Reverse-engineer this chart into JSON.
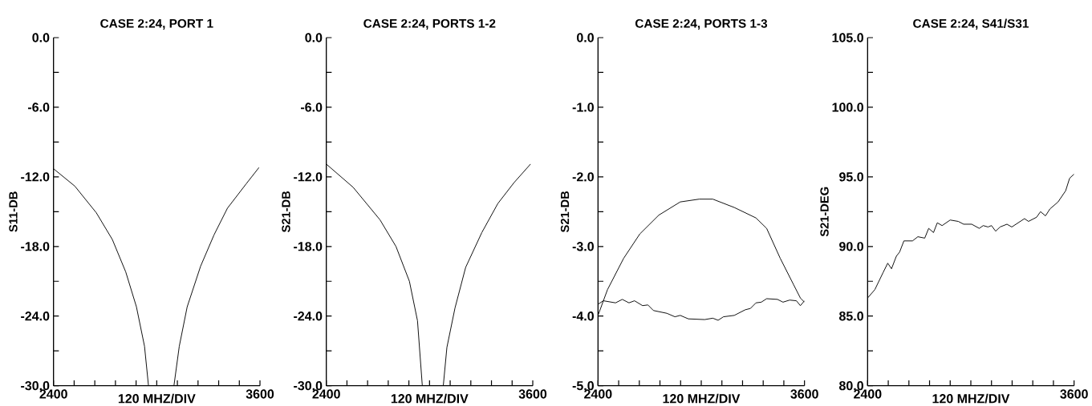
{
  "chart_data": [
    {
      "type": "line",
      "title": "CASE 2:24, PORT 1",
      "xlabel": "120 MHZ/DIV",
      "ylabel": "S11-DB",
      "xlim": [
        2400,
        3600
      ],
      "ylim": [
        -30,
        0
      ],
      "xticks": [
        2400,
        {
          "value": 2520,
          "label": null
        },
        {
          "value": 2640,
          "label": null
        },
        {
          "value": 2760,
          "label": null
        },
        {
          "value": 2880,
          "label": null
        },
        {
          "value": 3000,
          "label": null
        },
        {
          "value": 3120,
          "label": null
        },
        {
          "value": 3240,
          "label": null
        },
        {
          "value": 3360,
          "label": null
        },
        {
          "value": 3480,
          "label": null
        },
        3600
      ],
      "yticks": [
        {
          "value": -30,
          "label": "-30.0"
        },
        {
          "value": -27,
          "label": null
        },
        {
          "value": -24,
          "label": "-24.0"
        },
        {
          "value": -21,
          "label": null
        },
        {
          "value": -18,
          "label": "-18.0"
        },
        {
          "value": -15,
          "label": null
        },
        {
          "value": -12,
          "label": "-12.0"
        },
        {
          "value": -9,
          "label": null
        },
        {
          "value": -6,
          "label": "-6.0"
        },
        {
          "value": -3,
          "label": null
        },
        {
          "value": 0,
          "label": "0.0"
        }
      ],
      "series": [
        {
          "color": "#000000",
          "x": [
            2400,
            2524,
            2649,
            2742,
            2820,
            2882,
            2929,
            2952
          ],
          "values": [
            -11.3,
            -12.8,
            -15.1,
            -17.4,
            -20.2,
            -23.2,
            -26.6,
            -30
          ]
        },
        {
          "color": "#000000",
          "x": [
            3100,
            3131,
            3177,
            3255,
            3333,
            3411,
            3520,
            3594
          ],
          "values": [
            -30,
            -26.6,
            -23.2,
            -19.7,
            -17.0,
            -14.7,
            -12.6,
            -11.2
          ]
        }
      ]
    },
    {
      "type": "line",
      "title": "CASE 2:24, PORTS 1-2",
      "xlabel": "120 MHZ/DIV",
      "ylabel": "S21-DB",
      "xlim": [
        2400,
        3600
      ],
      "ylim": [
        -30,
        0
      ],
      "xticks": [
        2400,
        {
          "value": 2520,
          "label": null
        },
        {
          "value": 2640,
          "label": null
        },
        {
          "value": 2760,
          "label": null
        },
        {
          "value": 2880,
          "label": null
        },
        {
          "value": 3000,
          "label": null
        },
        {
          "value": 3120,
          "label": null
        },
        {
          "value": 3240,
          "label": null
        },
        {
          "value": 3360,
          "label": null
        },
        {
          "value": 3480,
          "label": null
        },
        3600
      ],
      "yticks": [
        {
          "value": -30,
          "label": "-30.0"
        },
        {
          "value": -27,
          "label": null
        },
        {
          "value": -24,
          "label": "-24.0"
        },
        {
          "value": -21,
          "label": null
        },
        {
          "value": -18,
          "label": "-18.0"
        },
        {
          "value": -15,
          "label": null
        },
        {
          "value": -12,
          "label": "-12.0"
        },
        {
          "value": -9,
          "label": null
        },
        {
          "value": -6,
          "label": "-6.0"
        },
        {
          "value": -3,
          "label": null
        },
        {
          "value": 0,
          "label": "0.0"
        }
      ],
      "series": [
        {
          "color": "#000000",
          "x": [
            2400,
            2556,
            2712,
            2805,
            2883,
            2930,
            2958
          ],
          "values": [
            -10.9,
            -12.9,
            -15.7,
            -18.0,
            -21.0,
            -24.4,
            -30
          ]
        },
        {
          "color": "#000000",
          "x": [
            3080,
            3101,
            3148,
            3210,
            3304,
            3397,
            3491,
            3587
          ],
          "values": [
            -30,
            -26.7,
            -23.3,
            -19.8,
            -16.8,
            -14.3,
            -12.5,
            -10.9
          ]
        }
      ]
    },
    {
      "type": "line",
      "title": "CASE 2:24, PORTS 1-3",
      "xlabel": "120 MHZ/DIV",
      "ylabel": "S21-DB",
      "xlim": [
        2400,
        3600
      ],
      "ylim": [
        -5,
        0
      ],
      "xticks": [
        2400,
        {
          "value": 2520,
          "label": null
        },
        {
          "value": 2640,
          "label": null
        },
        {
          "value": 2760,
          "label": null
        },
        {
          "value": 2880,
          "label": null
        },
        {
          "value": 3000,
          "label": null
        },
        {
          "value": 3120,
          "label": null
        },
        {
          "value": 3240,
          "label": null
        },
        {
          "value": 3360,
          "label": null
        },
        {
          "value": 3480,
          "label": null
        },
        3600
      ],
      "yticks": [
        {
          "value": -5,
          "label": "-5.0"
        },
        {
          "value": -4.5,
          "label": null
        },
        {
          "value": -4,
          "label": "-4.0"
        },
        {
          "value": -3.5,
          "label": null
        },
        {
          "value": -3,
          "label": "-3.0"
        },
        {
          "value": -2.5,
          "label": null
        },
        {
          "value": -2,
          "label": "-2.0"
        },
        {
          "value": -1.5,
          "label": null
        },
        {
          "value": -1,
          "label": "-1.0"
        },
        {
          "value": -0.5,
          "label": null
        },
        {
          "value": 0,
          "label": "0.0"
        }
      ],
      "series": [
        {
          "color": "#000000",
          "x": [
            2400,
            2455,
            2549,
            2643,
            2753,
            2878,
            2988,
            3067,
            3192,
            3318,
            3380,
            3459,
            3537,
            3576,
            3600
          ],
          "values": [
            -3.99,
            -3.62,
            -3.17,
            -2.82,
            -2.55,
            -2.36,
            -2.32,
            -2.32,
            -2.44,
            -2.59,
            -2.74,
            -3.17,
            -3.55,
            -3.74,
            -3.8
          ]
        },
        {
          "color": "#000000",
          "x": [
            2400,
            2431,
            2502,
            2541,
            2580,
            2612,
            2659,
            2690,
            2722,
            2800,
            2847,
            2878,
            2925,
            3020,
            3067,
            3098,
            3129,
            3192,
            3255,
            3286,
            3318,
            3349,
            3380,
            3443,
            3475,
            3514,
            3553,
            3576,
            3600
          ],
          "values": [
            -3.83,
            -3.78,
            -3.81,
            -3.76,
            -3.81,
            -3.78,
            -3.85,
            -3.84,
            -3.92,
            -3.96,
            -4.01,
            -3.99,
            -4.04,
            -4.05,
            -4.03,
            -4.06,
            -4.01,
            -3.99,
            -3.91,
            -3.89,
            -3.81,
            -3.8,
            -3.75,
            -3.76,
            -3.8,
            -3.77,
            -3.78,
            -3.85,
            -3.78
          ]
        }
      ]
    },
    {
      "type": "line",
      "title": "CASE 2:24, S41/S31",
      "xlabel": "120 MHZ/DIV",
      "ylabel": "S21-DEG",
      "xlim": [
        2400,
        3600
      ],
      "ylim": [
        80,
        105
      ],
      "xticks": [
        2400,
        {
          "value": 2520,
          "label": null
        },
        {
          "value": 2640,
          "label": null
        },
        {
          "value": 2760,
          "label": null
        },
        {
          "value": 2880,
          "label": null
        },
        {
          "value": 3000,
          "label": null
        },
        {
          "value": 3120,
          "label": null
        },
        {
          "value": 3240,
          "label": null
        },
        {
          "value": 3360,
          "label": null
        },
        {
          "value": 3480,
          "label": null
        },
        3600
      ],
      "yticks": [
        {
          "value": 80,
          "label": "80.0"
        },
        {
          "value": 82.5,
          "label": null
        },
        {
          "value": 85,
          "label": "85.0"
        },
        {
          "value": 87.5,
          "label": null
        },
        {
          "value": 90,
          "label": "90.0"
        },
        {
          "value": 92.5,
          "label": null
        },
        {
          "value": 95,
          "label": "95.0"
        },
        {
          "value": 97.5,
          "label": null
        },
        {
          "value": 100,
          "label": "100.0"
        },
        {
          "value": 102.5,
          "label": null
        },
        {
          "value": 105,
          "label": "105.0"
        }
      ],
      "series": [
        {
          "color": "#000000",
          "x": [
            2400,
            2442,
            2489,
            2517,
            2539,
            2567,
            2586,
            2611,
            2661,
            2692,
            2732,
            2755,
            2783,
            2805,
            2833,
            2880,
            2927,
            2958,
            3005,
            3049,
            3072,
            3100,
            3120,
            3144,
            3170,
            3210,
            3238,
            3312,
            3335,
            3382,
            3405,
            3434,
            3460,
            3507,
            3551,
            3574,
            3600
          ],
          "values": [
            86.3,
            86.9,
            88.1,
            88.8,
            88.4,
            89.3,
            89.6,
            90.4,
            90.4,
            90.7,
            90.6,
            91.3,
            91.0,
            91.7,
            91.5,
            91.9,
            91.8,
            91.6,
            91.6,
            91.3,
            91.5,
            91.4,
            91.5,
            91.1,
            91.4,
            91.6,
            91.4,
            92.0,
            91.8,
            92.1,
            92.5,
            92.2,
            92.7,
            93.2,
            94.0,
            94.9,
            95.2
          ]
        }
      ]
    }
  ]
}
